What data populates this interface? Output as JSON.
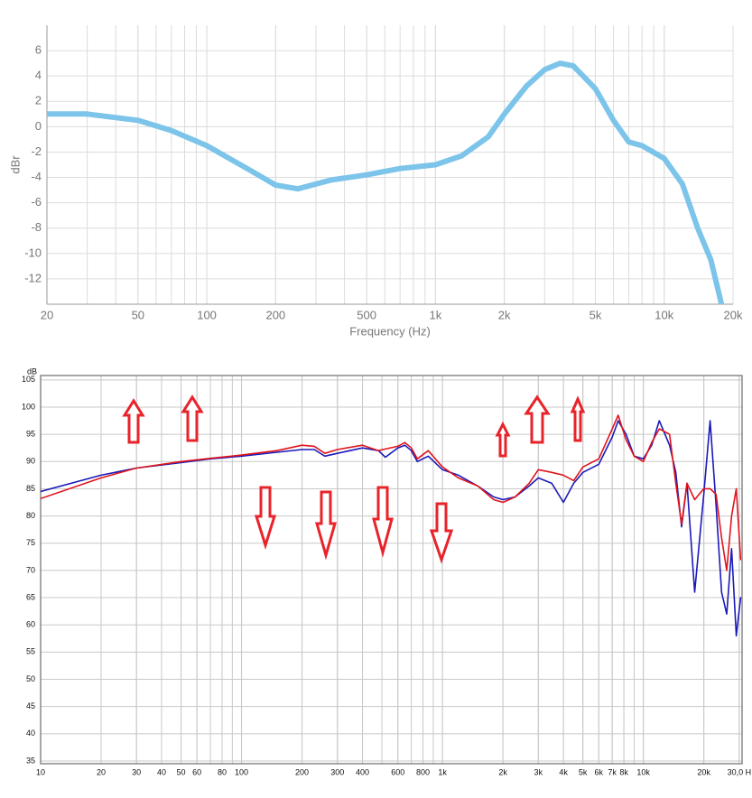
{
  "chart_data": [
    {
      "type": "line",
      "ylabel": "dBr",
      "xlabel": "Frequency (Hz)",
      "log_x": true,
      "grid": true,
      "xlim": [
        20,
        20000
      ],
      "ylim": [
        -14,
        8
      ],
      "xticks": [
        20,
        50,
        100,
        200,
        500,
        {
          "value": 1000,
          "label": "1k"
        },
        {
          "value": 2000,
          "label": "2k"
        },
        {
          "value": 5000,
          "label": "5k"
        },
        {
          "value": 10000,
          "label": "10k"
        },
        {
          "value": 20000,
          "label": "20k"
        }
      ],
      "yticks": [
        6,
        4,
        2,
        0,
        -2,
        -4,
        -6,
        -8,
        -10,
        -12
      ],
      "x": [
        20,
        30,
        50,
        70,
        100,
        150,
        200,
        250,
        350,
        500,
        700,
        1000,
        1300,
        1700,
        2000,
        2500,
        3000,
        3500,
        4000,
        5000,
        6000,
        7000,
        8000,
        10000,
        12000,
        14000,
        16000,
        17800
      ],
      "series": [
        {
          "color": "#7cc4ea",
          "values": [
            1.0,
            1.0,
            0.5,
            -0.3,
            -1.5,
            -3.3,
            -4.6,
            -4.9,
            -4.2,
            -3.8,
            -3.3,
            -3.0,
            -2.3,
            -0.8,
            1.0,
            3.2,
            4.5,
            5.0,
            4.8,
            3.0,
            0.5,
            -1.2,
            -1.5,
            -2.5,
            -4.5,
            -8,
            -10.5,
            -14
          ]
        }
      ]
    },
    {
      "type": "line",
      "ylabel": "dB",
      "log_x": true,
      "grid": true,
      "xlim": [
        10,
        31000
      ],
      "ylim": [
        34.5,
        105.8
      ],
      "xticks": [
        10,
        20,
        30,
        40,
        50,
        60,
        80,
        100,
        200,
        300,
        400,
        600,
        800,
        {
          "value": 1000,
          "label": "1k"
        },
        {
          "value": 2000,
          "label": "2k"
        },
        {
          "value": 3000,
          "label": "3k"
        },
        {
          "value": 4000,
          "label": "4k"
        },
        {
          "value": 5000,
          "label": "5k"
        },
        {
          "value": 6000,
          "label": "6k"
        },
        {
          "value": 7000,
          "label": "7k"
        },
        {
          "value": 8000,
          "label": "8k"
        },
        {
          "value": 10000,
          "label": "10k"
        },
        {
          "value": 20000,
          "label": "20k"
        },
        {
          "value": 30000,
          "label": "30,0 H"
        }
      ],
      "yticks": [
        35,
        40,
        45,
        50,
        55,
        60,
        65,
        70,
        75,
        80,
        85,
        90,
        95,
        100,
        105
      ],
      "x": [
        10,
        20,
        30,
        50,
        70,
        100,
        150,
        200,
        230,
        260,
        300,
        400,
        480,
        520,
        600,
        650,
        700,
        750,
        850,
        1000,
        1200,
        1500,
        1800,
        2000,
        2300,
        2700,
        3000,
        3500,
        4000,
        4500,
        5000,
        6000,
        7000,
        7500,
        8200,
        9000,
        10000,
        11000,
        12000,
        13500,
        14500,
        15500,
        16500,
        18000,
        20000,
        21500,
        23000,
        24500,
        26000,
        27500,
        29000,
        30500
      ],
      "series": [
        {
          "color": "#1a1ab8",
          "values": [
            84.5,
            87.5,
            88.8,
            89.8,
            90.5,
            91.0,
            91.7,
            92.2,
            92.2,
            91.0,
            91.5,
            92.5,
            92.0,
            90.8,
            92.5,
            93.0,
            92.0,
            90.0,
            91.0,
            88.5,
            87.5,
            85.5,
            83.5,
            83.0,
            83.5,
            85.5,
            87.0,
            86.0,
            82.5,
            86.0,
            88.0,
            89.5,
            94.5,
            97.5,
            95.0,
            91.0,
            90.5,
            93.0,
            97.5,
            93.0,
            88.0,
            78.0,
            86.0,
            66.0,
            84.0,
            97.5,
            82.0,
            66.0,
            62.0,
            74.0,
            58.0,
            65.0
          ]
        },
        {
          "color": "#e0141c",
          "values": [
            83.2,
            87.0,
            88.8,
            90.0,
            90.6,
            91.2,
            92.0,
            93.0,
            92.8,
            91.5,
            92.2,
            93.0,
            92.0,
            92.3,
            92.8,
            93.5,
            92.5,
            90.5,
            92.0,
            89.0,
            87.0,
            85.5,
            83.0,
            82.5,
            83.5,
            86.0,
            88.5,
            88.0,
            87.5,
            86.5,
            89.0,
            90.5,
            96.0,
            98.5,
            94.0,
            91.0,
            90.0,
            93.5,
            96.0,
            95.0,
            86.0,
            78.5,
            86.0,
            83.0,
            85.0,
            85.0,
            84.0,
            76.0,
            70.0,
            80.0,
            85.0,
            72.0
          ]
        }
      ]
    }
  ]
}
